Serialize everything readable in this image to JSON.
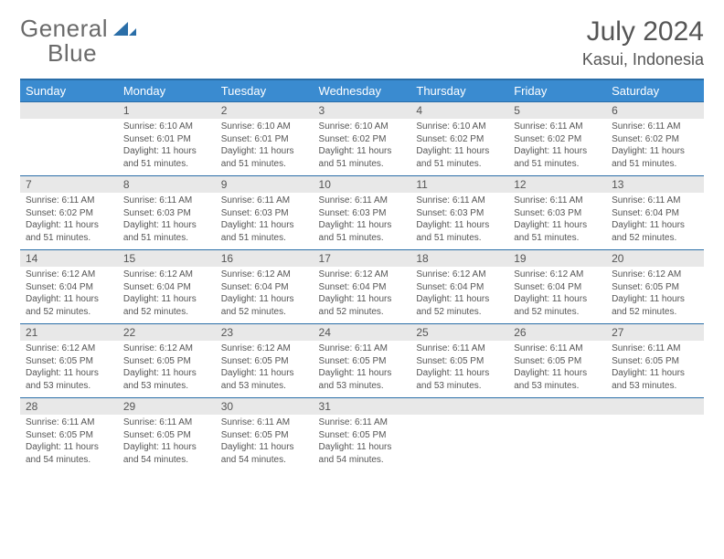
{
  "logo": {
    "word1": "General",
    "word2": "Blue"
  },
  "title": "July 2024",
  "subtitle": "Kasui, Indonesia",
  "colors": {
    "header_bg": "#3a8bd0",
    "header_border": "#2a6ea8",
    "daynum_bg": "#e8e8e8",
    "text": "#555555",
    "logo_blue": "#2a6ea8"
  },
  "weekdays": [
    "Sunday",
    "Monday",
    "Tuesday",
    "Wednesday",
    "Thursday",
    "Friday",
    "Saturday"
  ],
  "weeks": [
    [
      {
        "day": "",
        "sunrise": "",
        "sunset": "",
        "daylight": ""
      },
      {
        "day": "1",
        "sunrise": "Sunrise: 6:10 AM",
        "sunset": "Sunset: 6:01 PM",
        "daylight": "Daylight: 11 hours and 51 minutes."
      },
      {
        "day": "2",
        "sunrise": "Sunrise: 6:10 AM",
        "sunset": "Sunset: 6:01 PM",
        "daylight": "Daylight: 11 hours and 51 minutes."
      },
      {
        "day": "3",
        "sunrise": "Sunrise: 6:10 AM",
        "sunset": "Sunset: 6:02 PM",
        "daylight": "Daylight: 11 hours and 51 minutes."
      },
      {
        "day": "4",
        "sunrise": "Sunrise: 6:10 AM",
        "sunset": "Sunset: 6:02 PM",
        "daylight": "Daylight: 11 hours and 51 minutes."
      },
      {
        "day": "5",
        "sunrise": "Sunrise: 6:11 AM",
        "sunset": "Sunset: 6:02 PM",
        "daylight": "Daylight: 11 hours and 51 minutes."
      },
      {
        "day": "6",
        "sunrise": "Sunrise: 6:11 AM",
        "sunset": "Sunset: 6:02 PM",
        "daylight": "Daylight: 11 hours and 51 minutes."
      }
    ],
    [
      {
        "day": "7",
        "sunrise": "Sunrise: 6:11 AM",
        "sunset": "Sunset: 6:02 PM",
        "daylight": "Daylight: 11 hours and 51 minutes."
      },
      {
        "day": "8",
        "sunrise": "Sunrise: 6:11 AM",
        "sunset": "Sunset: 6:03 PM",
        "daylight": "Daylight: 11 hours and 51 minutes."
      },
      {
        "day": "9",
        "sunrise": "Sunrise: 6:11 AM",
        "sunset": "Sunset: 6:03 PM",
        "daylight": "Daylight: 11 hours and 51 minutes."
      },
      {
        "day": "10",
        "sunrise": "Sunrise: 6:11 AM",
        "sunset": "Sunset: 6:03 PM",
        "daylight": "Daylight: 11 hours and 51 minutes."
      },
      {
        "day": "11",
        "sunrise": "Sunrise: 6:11 AM",
        "sunset": "Sunset: 6:03 PM",
        "daylight": "Daylight: 11 hours and 51 minutes."
      },
      {
        "day": "12",
        "sunrise": "Sunrise: 6:11 AM",
        "sunset": "Sunset: 6:03 PM",
        "daylight": "Daylight: 11 hours and 51 minutes."
      },
      {
        "day": "13",
        "sunrise": "Sunrise: 6:11 AM",
        "sunset": "Sunset: 6:04 PM",
        "daylight": "Daylight: 11 hours and 52 minutes."
      }
    ],
    [
      {
        "day": "14",
        "sunrise": "Sunrise: 6:12 AM",
        "sunset": "Sunset: 6:04 PM",
        "daylight": "Daylight: 11 hours and 52 minutes."
      },
      {
        "day": "15",
        "sunrise": "Sunrise: 6:12 AM",
        "sunset": "Sunset: 6:04 PM",
        "daylight": "Daylight: 11 hours and 52 minutes."
      },
      {
        "day": "16",
        "sunrise": "Sunrise: 6:12 AM",
        "sunset": "Sunset: 6:04 PM",
        "daylight": "Daylight: 11 hours and 52 minutes."
      },
      {
        "day": "17",
        "sunrise": "Sunrise: 6:12 AM",
        "sunset": "Sunset: 6:04 PM",
        "daylight": "Daylight: 11 hours and 52 minutes."
      },
      {
        "day": "18",
        "sunrise": "Sunrise: 6:12 AM",
        "sunset": "Sunset: 6:04 PM",
        "daylight": "Daylight: 11 hours and 52 minutes."
      },
      {
        "day": "19",
        "sunrise": "Sunrise: 6:12 AM",
        "sunset": "Sunset: 6:04 PM",
        "daylight": "Daylight: 11 hours and 52 minutes."
      },
      {
        "day": "20",
        "sunrise": "Sunrise: 6:12 AM",
        "sunset": "Sunset: 6:05 PM",
        "daylight": "Daylight: 11 hours and 52 minutes."
      }
    ],
    [
      {
        "day": "21",
        "sunrise": "Sunrise: 6:12 AM",
        "sunset": "Sunset: 6:05 PM",
        "daylight": "Daylight: 11 hours and 53 minutes."
      },
      {
        "day": "22",
        "sunrise": "Sunrise: 6:12 AM",
        "sunset": "Sunset: 6:05 PM",
        "daylight": "Daylight: 11 hours and 53 minutes."
      },
      {
        "day": "23",
        "sunrise": "Sunrise: 6:12 AM",
        "sunset": "Sunset: 6:05 PM",
        "daylight": "Daylight: 11 hours and 53 minutes."
      },
      {
        "day": "24",
        "sunrise": "Sunrise: 6:11 AM",
        "sunset": "Sunset: 6:05 PM",
        "daylight": "Daylight: 11 hours and 53 minutes."
      },
      {
        "day": "25",
        "sunrise": "Sunrise: 6:11 AM",
        "sunset": "Sunset: 6:05 PM",
        "daylight": "Daylight: 11 hours and 53 minutes."
      },
      {
        "day": "26",
        "sunrise": "Sunrise: 6:11 AM",
        "sunset": "Sunset: 6:05 PM",
        "daylight": "Daylight: 11 hours and 53 minutes."
      },
      {
        "day": "27",
        "sunrise": "Sunrise: 6:11 AM",
        "sunset": "Sunset: 6:05 PM",
        "daylight": "Daylight: 11 hours and 53 minutes."
      }
    ],
    [
      {
        "day": "28",
        "sunrise": "Sunrise: 6:11 AM",
        "sunset": "Sunset: 6:05 PM",
        "daylight": "Daylight: 11 hours and 54 minutes."
      },
      {
        "day": "29",
        "sunrise": "Sunrise: 6:11 AM",
        "sunset": "Sunset: 6:05 PM",
        "daylight": "Daylight: 11 hours and 54 minutes."
      },
      {
        "day": "30",
        "sunrise": "Sunrise: 6:11 AM",
        "sunset": "Sunset: 6:05 PM",
        "daylight": "Daylight: 11 hours and 54 minutes."
      },
      {
        "day": "31",
        "sunrise": "Sunrise: 6:11 AM",
        "sunset": "Sunset: 6:05 PM",
        "daylight": "Daylight: 11 hours and 54 minutes."
      },
      {
        "day": "",
        "sunrise": "",
        "sunset": "",
        "daylight": ""
      },
      {
        "day": "",
        "sunrise": "",
        "sunset": "",
        "daylight": ""
      },
      {
        "day": "",
        "sunrise": "",
        "sunset": "",
        "daylight": ""
      }
    ]
  ]
}
